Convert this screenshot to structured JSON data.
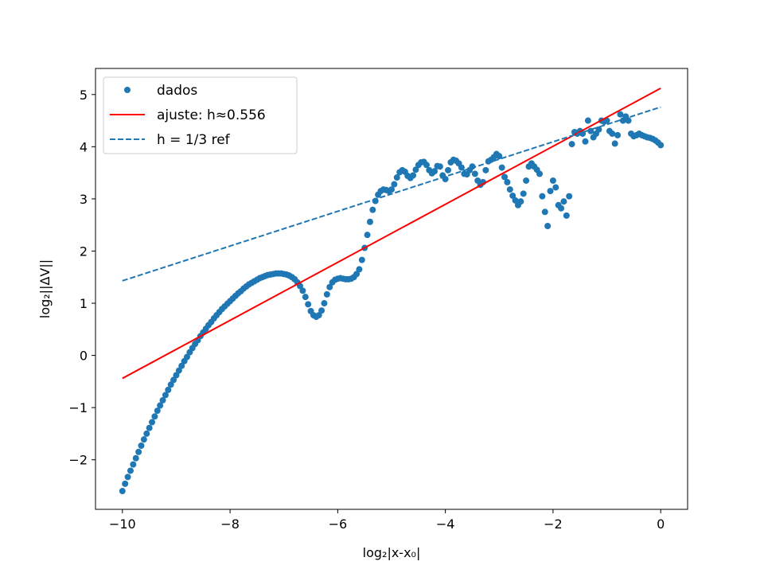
{
  "chart_data": {
    "type": "scatter",
    "title": "",
    "xlabel": "log₂|x-x₀|",
    "ylabel": "log₂||ΔV||",
    "xlim": [
      -10.5,
      0.5
    ],
    "ylim": [
      -2.95,
      5.5
    ],
    "xticks": [
      -10,
      -8,
      -6,
      -4,
      -2,
      0
    ],
    "yticks": [
      -2,
      -1,
      0,
      1,
      2,
      3,
      4,
      5
    ],
    "xtick_labels": [
      "−10",
      "−8",
      "−6",
      "−4",
      "−2",
      "0"
    ],
    "ytick_labels": [
      "−2",
      "−1",
      "0",
      "1",
      "2",
      "3",
      "4",
      "5"
    ],
    "grid": false,
    "legend_position": "top-left",
    "series": [
      {
        "name": "dados",
        "kind": "scatter",
        "color": "#1f77b4",
        "points": [
          [
            -10.0,
            -2.6
          ],
          [
            -9.95,
            -2.46
          ],
          [
            -9.9,
            -2.33
          ],
          [
            -9.85,
            -2.21
          ],
          [
            -9.8,
            -2.09
          ],
          [
            -9.75,
            -1.97
          ],
          [
            -9.7,
            -1.85
          ],
          [
            -9.65,
            -1.73
          ],
          [
            -9.6,
            -1.61
          ],
          [
            -9.55,
            -1.5
          ],
          [
            -9.5,
            -1.39
          ],
          [
            -9.45,
            -1.28
          ],
          [
            -9.4,
            -1.17
          ],
          [
            -9.35,
            -1.06
          ],
          [
            -9.3,
            -0.96
          ],
          [
            -9.25,
            -0.86
          ],
          [
            -9.2,
            -0.76
          ],
          [
            -9.15,
            -0.66
          ],
          [
            -9.1,
            -0.56
          ],
          [
            -9.05,
            -0.47
          ],
          [
            -9.0,
            -0.38
          ],
          [
            -8.95,
            -0.29
          ],
          [
            -8.9,
            -0.2
          ],
          [
            -8.85,
            -0.11
          ],
          [
            -8.8,
            -0.03
          ],
          [
            -8.75,
            0.06
          ],
          [
            -8.7,
            0.14
          ],
          [
            -8.65,
            0.22
          ],
          [
            -8.6,
            0.29
          ],
          [
            -8.55,
            0.37
          ],
          [
            -8.5,
            0.44
          ],
          [
            -8.45,
            0.51
          ],
          [
            -8.4,
            0.58
          ],
          [
            -8.35,
            0.64
          ],
          [
            -8.3,
            0.71
          ],
          [
            -8.25,
            0.77
          ],
          [
            -8.2,
            0.83
          ],
          [
            -8.15,
            0.89
          ],
          [
            -8.1,
            0.94
          ],
          [
            -8.05,
            0.99
          ],
          [
            -8.0,
            1.04
          ],
          [
            -7.95,
            1.09
          ],
          [
            -7.9,
            1.14
          ],
          [
            -7.85,
            1.19
          ],
          [
            -7.8,
            1.23
          ],
          [
            -7.75,
            1.28
          ],
          [
            -7.7,
            1.32
          ],
          [
            -7.65,
            1.36
          ],
          [
            -7.6,
            1.39
          ],
          [
            -7.55,
            1.42
          ],
          [
            -7.5,
            1.45
          ],
          [
            -7.45,
            1.48
          ],
          [
            -7.4,
            1.5
          ],
          [
            -7.35,
            1.52
          ],
          [
            -7.3,
            1.54
          ],
          [
            -7.25,
            1.55
          ],
          [
            -7.2,
            1.56
          ],
          [
            -7.15,
            1.57
          ],
          [
            -7.1,
            1.57
          ],
          [
            -7.05,
            1.57
          ],
          [
            -7.0,
            1.56
          ],
          [
            -6.95,
            1.55
          ],
          [
            -6.9,
            1.53
          ],
          [
            -6.85,
            1.5
          ],
          [
            -6.8,
            1.46
          ],
          [
            -6.75,
            1.4
          ],
          [
            -6.7,
            1.33
          ],
          [
            -6.65,
            1.24
          ],
          [
            -6.6,
            1.12
          ],
          [
            -6.55,
            0.98
          ],
          [
            -6.5,
            0.85
          ],
          [
            -6.45,
            0.77
          ],
          [
            -6.4,
            0.74
          ],
          [
            -6.35,
            0.77
          ],
          [
            -6.3,
            0.86
          ],
          [
            -6.25,
            1.0
          ],
          [
            -6.2,
            1.17
          ],
          [
            -6.15,
            1.31
          ],
          [
            -6.1,
            1.4
          ],
          [
            -6.05,
            1.45
          ],
          [
            -6.0,
            1.47
          ],
          [
            -5.95,
            1.48
          ],
          [
            -5.9,
            1.47
          ],
          [
            -5.85,
            1.46
          ],
          [
            -5.8,
            1.46
          ],
          [
            -5.75,
            1.47
          ],
          [
            -5.7,
            1.5
          ],
          [
            -5.65,
            1.56
          ],
          [
            -5.6,
            1.65
          ],
          [
            -5.55,
            1.83
          ],
          [
            -5.5,
            2.06
          ],
          [
            -5.45,
            2.31
          ],
          [
            -5.4,
            2.56
          ],
          [
            -5.35,
            2.79
          ],
          [
            -5.3,
            2.96
          ],
          [
            -5.25,
            3.08
          ],
          [
            -5.2,
            3.15
          ],
          [
            -5.15,
            3.18
          ],
          [
            -5.1,
            3.17
          ],
          [
            -5.05,
            3.15
          ],
          [
            -5.0,
            3.18
          ],
          [
            -4.95,
            3.28
          ],
          [
            -4.9,
            3.41
          ],
          [
            -4.85,
            3.51
          ],
          [
            -4.8,
            3.55
          ],
          [
            -4.75,
            3.52
          ],
          [
            -4.7,
            3.44
          ],
          [
            -4.65,
            3.4
          ],
          [
            -4.6,
            3.45
          ],
          [
            -4.55,
            3.56
          ],
          [
            -4.5,
            3.65
          ],
          [
            -4.45,
            3.7
          ],
          [
            -4.4,
            3.71
          ],
          [
            -4.35,
            3.65
          ],
          [
            -4.3,
            3.55
          ],
          [
            -4.25,
            3.49
          ],
          [
            -4.2,
            3.53
          ],
          [
            -4.15,
            3.63
          ],
          [
            -4.1,
            3.62
          ],
          [
            -4.05,
            3.45
          ],
          [
            -4.0,
            3.38
          ],
          [
            -3.95,
            3.55
          ],
          [
            -3.9,
            3.7
          ],
          [
            -3.85,
            3.75
          ],
          [
            -3.8,
            3.73
          ],
          [
            -3.75,
            3.68
          ],
          [
            -3.7,
            3.6
          ],
          [
            -3.65,
            3.48
          ],
          [
            -3.6,
            3.47
          ],
          [
            -3.55,
            3.55
          ],
          [
            -3.5,
            3.62
          ],
          [
            -3.45,
            3.48
          ],
          [
            -3.4,
            3.35
          ],
          [
            -3.35,
            3.27
          ],
          [
            -3.3,
            3.32
          ],
          [
            -3.25,
            3.55
          ],
          [
            -3.2,
            3.72
          ],
          [
            -3.15,
            3.75
          ],
          [
            -3.1,
            3.8
          ],
          [
            -3.05,
            3.86
          ],
          [
            -3.0,
            3.82
          ],
          [
            -2.95,
            3.6
          ],
          [
            -2.9,
            3.42
          ],
          [
            -2.85,
            3.32
          ],
          [
            -2.8,
            3.18
          ],
          [
            -2.75,
            3.06
          ],
          [
            -2.7,
            2.97
          ],
          [
            -2.65,
            2.88
          ],
          [
            -2.6,
            2.95
          ],
          [
            -2.55,
            3.1
          ],
          [
            -2.5,
            3.35
          ],
          [
            -2.45,
            3.62
          ],
          [
            -2.4,
            3.68
          ],
          [
            -2.35,
            3.62
          ],
          [
            -2.3,
            3.56
          ],
          [
            -2.25,
            3.48
          ],
          [
            -2.2,
            3.05
          ],
          [
            -2.15,
            2.75
          ],
          [
            -2.1,
            2.48
          ],
          [
            -2.05,
            3.15
          ],
          [
            -2.0,
            3.35
          ],
          [
            -1.95,
            3.22
          ],
          [
            -1.9,
            2.88
          ],
          [
            -1.85,
            2.82
          ],
          [
            -1.8,
            2.95
          ],
          [
            -1.75,
            2.68
          ],
          [
            -1.7,
            3.05
          ],
          [
            -1.65,
            4.05
          ],
          [
            -1.6,
            4.28
          ],
          [
            -1.55,
            4.25
          ],
          [
            -1.5,
            4.3
          ],
          [
            -1.45,
            4.25
          ],
          [
            -1.4,
            4.1
          ],
          [
            -1.35,
            4.5
          ],
          [
            -1.3,
            4.3
          ],
          [
            -1.25,
            4.18
          ],
          [
            -1.2,
            4.25
          ],
          [
            -1.15,
            4.33
          ],
          [
            -1.1,
            4.5
          ],
          [
            -1.05,
            4.48
          ],
          [
            -1.0,
            4.5
          ],
          [
            -0.95,
            4.3
          ],
          [
            -0.9,
            4.25
          ],
          [
            -0.85,
            4.06
          ],
          [
            -0.8,
            4.22
          ],
          [
            -0.75,
            4.62
          ],
          [
            -0.7,
            4.5
          ],
          [
            -0.65,
            4.58
          ],
          [
            -0.6,
            4.5
          ],
          [
            -0.55,
            4.25
          ],
          [
            -0.5,
            4.2
          ],
          [
            -0.45,
            4.22
          ],
          [
            -0.4,
            4.25
          ],
          [
            -0.35,
            4.22
          ],
          [
            -0.3,
            4.2
          ],
          [
            -0.25,
            4.18
          ],
          [
            -0.2,
            4.17
          ],
          [
            -0.15,
            4.15
          ],
          [
            -0.1,
            4.12
          ],
          [
            -0.05,
            4.08
          ],
          [
            0.0,
            4.03
          ]
        ]
      },
      {
        "name": "ajuste: h≈0.556",
        "kind": "line",
        "color": "#ff0000",
        "dash": "solid",
        "x": [
          -10.0,
          0.0
        ],
        "y": [
          -0.44,
          5.12
        ]
      },
      {
        "name": "h = 1/3 ref",
        "kind": "line",
        "color": "#1f77b4",
        "dash": "dashed",
        "x": [
          -10.0,
          0.0
        ],
        "y": [
          1.43,
          4.76
        ]
      }
    ]
  }
}
